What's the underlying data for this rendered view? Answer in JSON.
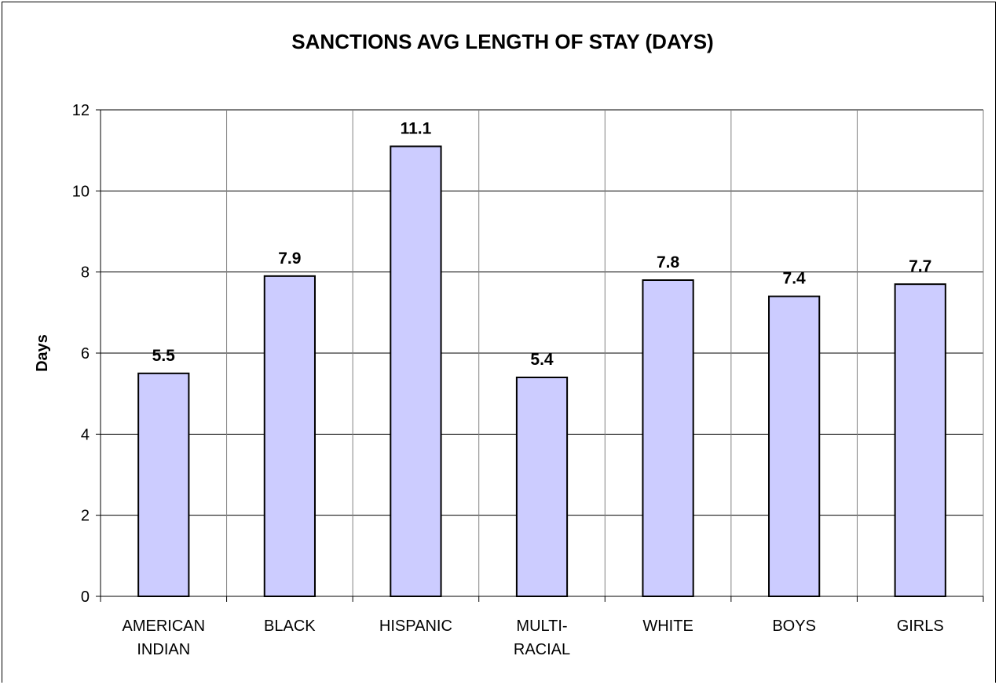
{
  "chart_data": {
    "type": "bar",
    "title": "SANCTIONS AVG LENGTH OF STAY (DAYS)",
    "xlabel": "",
    "ylabel": "Days",
    "ylim": [
      0,
      12
    ],
    "yticks": [
      0,
      2,
      4,
      6,
      8,
      10,
      12
    ],
    "grid": true,
    "categories": [
      [
        "AMERICAN",
        "INDIAN"
      ],
      [
        "BLACK"
      ],
      [
        "HISPANIC"
      ],
      [
        "MULTI-",
        "RACIAL"
      ],
      [
        "WHITE"
      ],
      [
        "BOYS"
      ],
      [
        "GIRLS"
      ]
    ],
    "values": [
      5.5,
      7.9,
      11.1,
      5.4,
      7.8,
      7.4,
      7.7
    ],
    "data_labels": [
      "5.5",
      "7.9",
      "11.1",
      "5.4",
      "7.8",
      "7.4",
      "7.7"
    ],
    "bar_color": "#ccccff",
    "bar_edge_color": "#000000"
  }
}
